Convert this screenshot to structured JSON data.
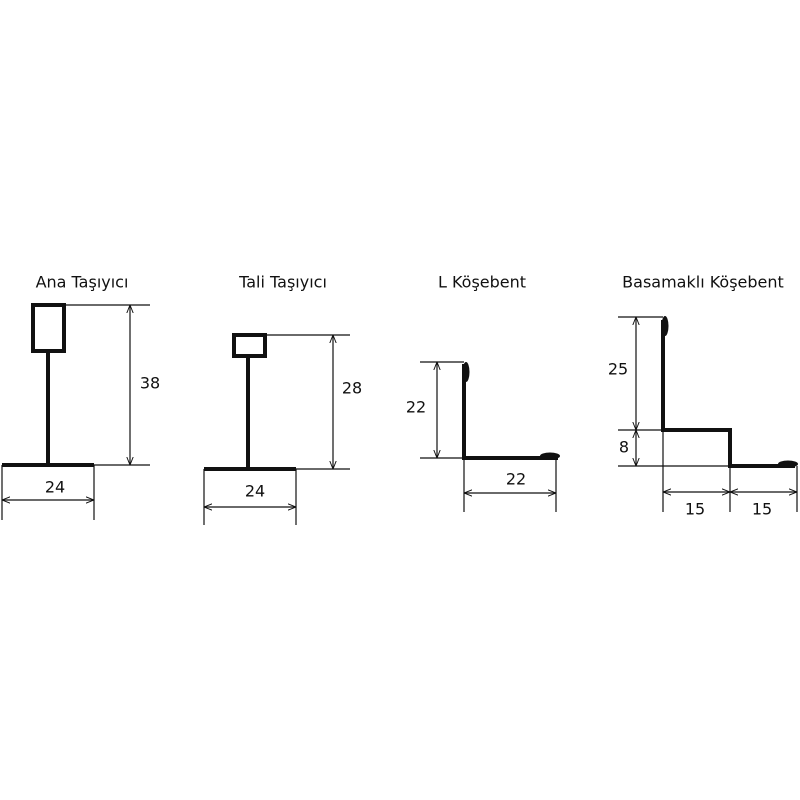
{
  "profiles": [
    {
      "title": "Ana Taşıyıcı",
      "dimensions": [
        "38",
        "24"
      ]
    },
    {
      "title": "Tali Taşıyıcı",
      "dimensions": [
        "28",
        "24"
      ]
    },
    {
      "title": "L Köşebent",
      "dimensions": [
        "22",
        "22"
      ]
    },
    {
      "title": "Basamaklı Köşebent",
      "dimensions": [
        "25",
        "8",
        "15",
        "15"
      ]
    }
  ]
}
